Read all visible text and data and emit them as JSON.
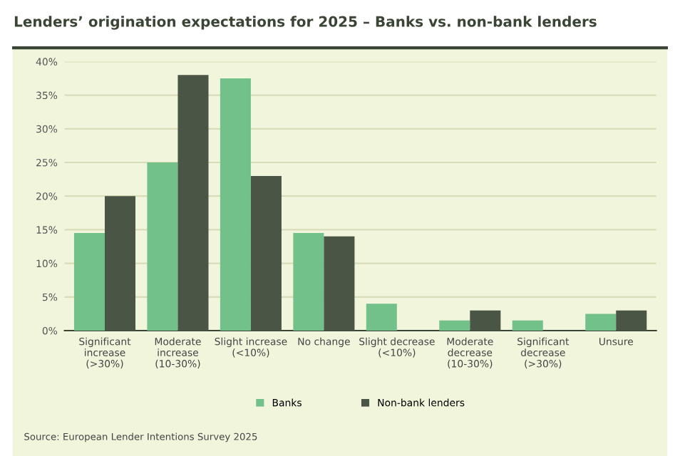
{
  "chart_data": {
    "type": "bar",
    "title": "Lenders’ origination expectations for 2025 – Banks vs. non-bank lenders",
    "categories": [
      "Significant\nincrease\n(>30%)",
      "Moderate\nincrease\n(10-30%)",
      "Slight increase\n(<10%)",
      "No change",
      "Slight decrease\n(<10%)",
      "Moderate\ndecrease\n(10-30%)",
      "Significant\ndecrease\n(>30%)",
      "Unsure"
    ],
    "series": [
      {
        "name": "Banks",
        "color": "#72c18a",
        "values": [
          14.5,
          25,
          37.5,
          14.5,
          4,
          1.5,
          1.5,
          2.5
        ]
      },
      {
        "name": "Non-bank lenders",
        "color": "#4a5545",
        "values": [
          20,
          38,
          23,
          14,
          0,
          3,
          0,
          3
        ]
      }
    ],
    "ylim": [
      0,
      40
    ],
    "yticks": [
      {
        "value": 0,
        "label": "0%"
      },
      {
        "value": 5,
        "label": "5%"
      },
      {
        "value": 10,
        "label": "10%"
      },
      {
        "value": 15,
        "label": "15%"
      },
      {
        "value": 20,
        "label": "20%"
      },
      {
        "value": 25,
        "label": "25%"
      },
      {
        "value": 30,
        "label": "30%"
      },
      {
        "value": 35,
        "label": "35%"
      },
      {
        "value": 40,
        "label": "40%"
      }
    ],
    "grid": "y",
    "legend": "bottom",
    "annotations": [
      "Source: European Lender Intentions Survey 2025"
    ]
  }
}
